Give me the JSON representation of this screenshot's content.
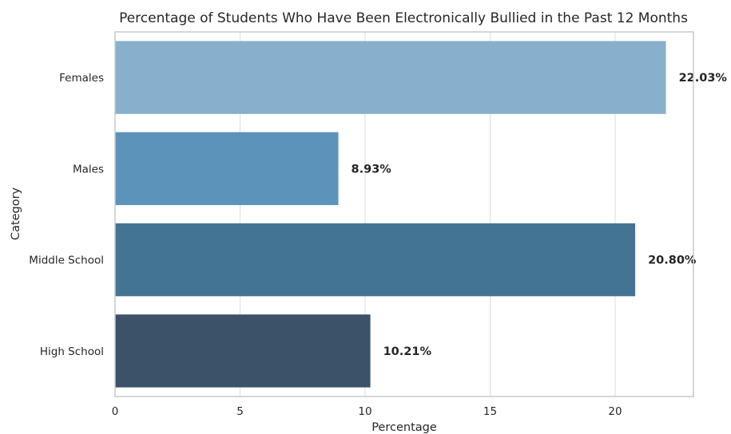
{
  "chart_data": {
    "type": "bar",
    "orientation": "horizontal",
    "title": "Percentage of Students Who Have Been Electronically Bullied in the Past 12 Months",
    "xlabel": "Percentage",
    "ylabel": "Category",
    "categories": [
      "Females",
      "Males",
      "Middle School",
      "High School"
    ],
    "values": [
      22.03,
      8.93,
      20.8,
      10.21
    ],
    "value_labels": [
      "22.03%",
      "8.93%",
      "20.80%",
      "10.21%"
    ],
    "colors": [
      "#88b0cc",
      "#5b93bb",
      "#447494",
      "#3b5269"
    ],
    "xlim": [
      0,
      23.13
    ],
    "xticks": [
      0,
      5,
      10,
      15,
      20
    ],
    "xtick_labels": [
      "0",
      "5",
      "10",
      "15",
      "20"
    ],
    "grid": "vertical",
    "legend": "none"
  }
}
